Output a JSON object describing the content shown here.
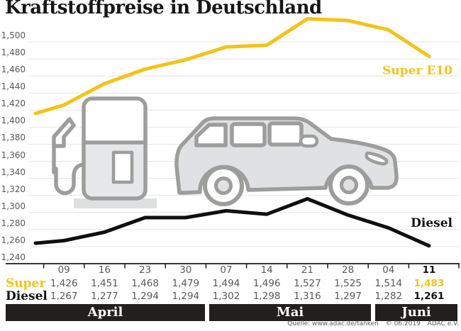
{
  "title": "Kraftstoffpreise in Deutschland",
  "labels": {
    "super_line": "Super E10",
    "diesel_line": "Diesel",
    "super_row": "Super",
    "diesel_row": "Diesel"
  },
  "chart_data": {
    "type": "line",
    "title": "Kraftstoffpreise in Deutschland",
    "ylim": [
      1240,
      1500
    ],
    "ytick_step": 20,
    "grid": true,
    "categories": [
      "09",
      "16",
      "23",
      "30",
      "07",
      "14",
      "21",
      "28",
      "04",
      "11"
    ],
    "month_groups": [
      {
        "label": "April",
        "columns": [
          "09",
          "16",
          "23",
          "30"
        ]
      },
      {
        "label": "Mai",
        "columns": [
          "07",
          "14",
          "21",
          "28"
        ]
      },
      {
        "label": "Juni",
        "columns": [
          "04",
          "11"
        ]
      }
    ],
    "series": [
      {
        "name": "Super E10",
        "row_label": "Super",
        "color": "#F4C318",
        "lead_in_value": 1416,
        "values": [
          1426,
          1451,
          1468,
          1479,
          1494,
          1496,
          1527,
          1525,
          1514,
          1483
        ]
      },
      {
        "name": "Diesel",
        "row_label": "Diesel",
        "color": "#0F0F0F",
        "lead_in_value": 1264,
        "values": [
          1267,
          1277,
          1294,
          1294,
          1302,
          1298,
          1316,
          1297,
          1282,
          1261
        ]
      }
    ],
    "highlight_last_column": true,
    "legend_position": "line-end-labels"
  },
  "footer": {
    "source": "Quelle: www.adac.de/tanken",
    "copyright": "© 06.2019",
    "org": "ADAC e.V."
  },
  "icons": {
    "pump": "fuel-pump-icon",
    "car": "car-icon"
  },
  "colors": {
    "super_yellow": "#F4C318",
    "diesel_black": "#0F0F0F",
    "gridline": "#E4E4E4",
    "axis": "#1A1A1A",
    "muted_text": "#59595B",
    "band_background": "#21201E",
    "icon_stroke": "#9D9D9C",
    "icon_fill": "#E2E4E6"
  }
}
